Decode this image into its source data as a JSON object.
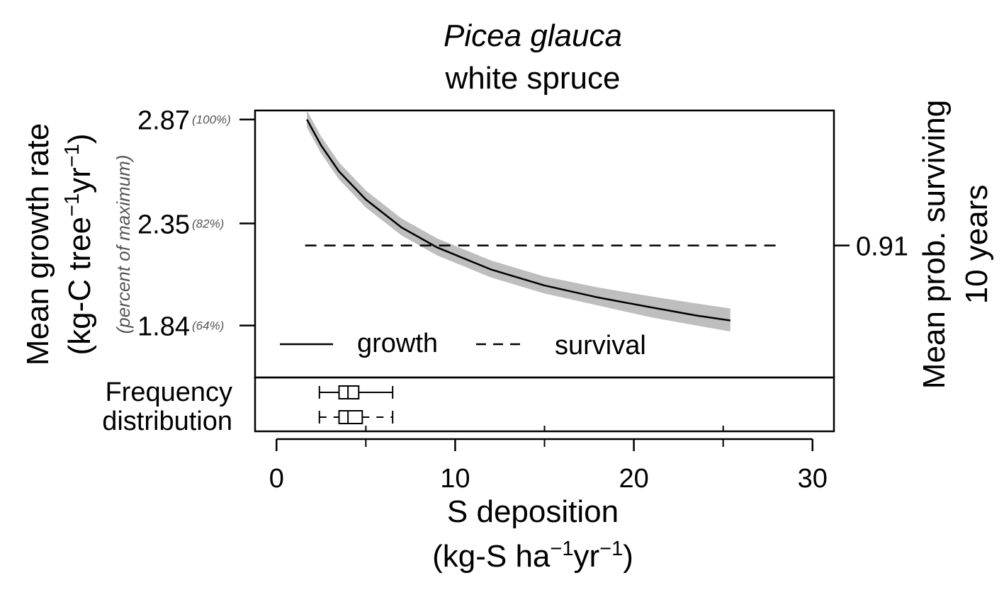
{
  "chart_data": {
    "type": "line",
    "title": "Picea glauca",
    "subtitle": "white spruce",
    "xlabel": "S deposition",
    "xlabel_units": {
      "prefix": "(kg-S ha",
      "exp1": "−1",
      "mid": "yr",
      "exp2": "−1",
      "suffix": ")"
    },
    "ylabel": "Mean growth rate",
    "ylabel_units": {
      "prefix": "(kg-C tree",
      "exp1": "−1",
      "mid": "yr",
      "exp2": "−1",
      "suffix": ")"
    },
    "ylabel_secondary": "(percent of maximum)",
    "ylabel_right": [
      "Mean prob. surviving",
      "10 years"
    ],
    "xlim": [
      -1.2,
      31.2
    ],
    "ylim": [
      1.58,
      2.915
    ],
    "x_ticks": [
      0,
      10,
      20,
      30
    ],
    "x_minor_ticks": [
      5,
      15,
      25
    ],
    "y_ticks": [
      {
        "value": 2.87,
        "label": "2.87",
        "pct": "(100%)"
      },
      {
        "value": 2.35,
        "label": "2.35",
        "pct": "(82%)"
      },
      {
        "value": 1.84,
        "label": "1.84",
        "pct": "(64%)"
      }
    ],
    "right_ticks": [
      {
        "value": 2.24,
        "label": "0.91"
      }
    ],
    "series": [
      {
        "name": "growth",
        "style": "solid",
        "color": "#000000",
        "ci_color": "#bebebe",
        "points": [
          {
            "x": 1.7,
            "y": 2.87,
            "lo": 2.83,
            "hi": 2.915
          },
          {
            "x": 2.5,
            "y": 2.74,
            "lo": 2.7,
            "hi": 2.785
          },
          {
            "x": 3.5,
            "y": 2.61,
            "lo": 2.57,
            "hi": 2.655
          },
          {
            "x": 5.0,
            "y": 2.47,
            "lo": 2.43,
            "hi": 2.515
          },
          {
            "x": 7.0,
            "y": 2.33,
            "lo": 2.29,
            "hi": 2.375
          },
          {
            "x": 9.0,
            "y": 2.23,
            "lo": 2.19,
            "hi": 2.275
          },
          {
            "x": 12.0,
            "y": 2.12,
            "lo": 2.08,
            "hi": 2.165
          },
          {
            "x": 15.0,
            "y": 2.04,
            "lo": 2.0,
            "hi": 2.085
          },
          {
            "x": 18.0,
            "y": 1.98,
            "lo": 1.94,
            "hi": 2.03
          },
          {
            "x": 21.0,
            "y": 1.93,
            "lo": 1.88,
            "hi": 1.985
          },
          {
            "x": 23.5,
            "y": 1.89,
            "lo": 1.84,
            "hi": 1.95
          },
          {
            "x": 25.4,
            "y": 1.865,
            "lo": 1.81,
            "hi": 1.925
          }
        ]
      },
      {
        "name": "survival",
        "style": "dashed",
        "color": "#000000",
        "points": [
          {
            "x": 1.6,
            "y": 2.24
          },
          {
            "x": 28.2,
            "y": 2.24
          }
        ]
      }
    ],
    "legend": {
      "placement": "bottom-left",
      "entries": [
        {
          "label": "growth",
          "style": "solid"
        },
        {
          "label": "survival",
          "style": "dashed"
        }
      ]
    },
    "frequency_label": [
      "Frequency",
      "distribution"
    ],
    "boxplots": [
      {
        "name": "growth",
        "whisker_style": "solid",
        "min": 2.4,
        "q1": 3.5,
        "median": 4.0,
        "q3": 4.6,
        "max": 6.5
      },
      {
        "name": "survival",
        "whisker_style": "dashed",
        "min": 2.4,
        "q1": 3.5,
        "median": 4.0,
        "q3": 4.8,
        "max": 6.5
      }
    ]
  }
}
